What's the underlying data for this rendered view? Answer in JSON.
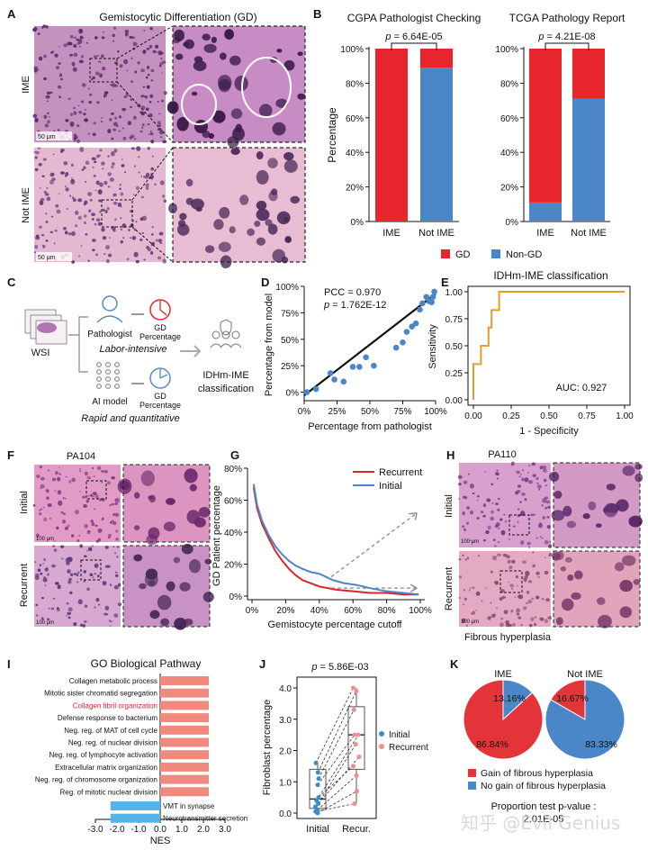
{
  "panel_letters": [
    "A",
    "B",
    "C",
    "D",
    "E",
    "F",
    "G",
    "H",
    "I",
    "J",
    "K"
  ],
  "colors": {
    "red": "#e8242c",
    "blue": "#4a86c8",
    "orange": "#e89a2c",
    "black": "#111111",
    "salmon": "#f08a7e",
    "skyblue": "#54b4e8",
    "pink": "#ef8f8f",
    "gray": "#8a8a8a",
    "he_pink": "#d9a4c8",
    "he_purple": "#b074b4"
  },
  "panelA": {
    "title": "Gemistocytic Differentiation (GD)",
    "rows": [
      "IME",
      "Not IME"
    ],
    "scalebar": "50 μm"
  },
  "panelB": {
    "legend": [
      "GD",
      "Non-GD"
    ],
    "ylabel": "Percentage",
    "yticks": [
      "0%",
      "20%",
      "40%",
      "60%",
      "80%",
      "100%"
    ]
  },
  "panelC": {
    "wsi": "WSI",
    "pathologist": "Pathologist",
    "labor": "Labor-intensive",
    "ai": "AI model",
    "rapid": "Rapid and quantitative",
    "gd_pct": "GD\nPercentage",
    "idh_line1": "IDHm-IME",
    "idh_line2": "classification"
  },
  "panelF": {
    "title": "PA104",
    "rows": [
      "Initial",
      "Recurrent"
    ],
    "scalebar": "100 μm"
  },
  "panelH": {
    "title": "PA110",
    "rows": [
      "Initial",
      "Recurrent"
    ],
    "caption": "Fibrous hyperplasia",
    "scalebar": "100 μm"
  },
  "watermark": "知乎 @Evil Genius",
  "chart_data": [
    {
      "id": "B1",
      "type": "bar",
      "stacked": true,
      "title": "CGPA Pathologist Checking",
      "annotation": "p = 6.64E-05",
      "categories": [
        "IME",
        "Not IME"
      ],
      "series": [
        {
          "name": "Non-GD",
          "values": [
            0,
            89
          ]
        },
        {
          "name": "GD",
          "values": [
            100,
            11
          ]
        }
      ],
      "ylabel": "Percentage",
      "ylim": [
        0,
        100
      ]
    },
    {
      "id": "B2",
      "type": "bar",
      "stacked": true,
      "title": "TCGA Pathology Report",
      "annotation": "p = 4.21E-08",
      "categories": [
        "IME",
        "Not IME"
      ],
      "series": [
        {
          "name": "Non-GD",
          "values": [
            11,
            71
          ]
        },
        {
          "name": "GD",
          "values": [
            89,
            29
          ]
        }
      ],
      "ylim": [
        0,
        100
      ]
    },
    {
      "id": "D",
      "type": "scatter",
      "xlabel": "Percentage from pathologist",
      "ylabel": "Percentage from model",
      "annotations": [
        "PCC = 0.970",
        "p = 1.762E-12"
      ],
      "xticks": [
        "0%",
        "25%",
        "50%",
        "75%",
        "100%"
      ],
      "yticks": [
        "0%",
        "25%",
        "50%",
        "75%",
        "100%"
      ],
      "xlim": [
        0,
        100
      ],
      "ylim": [
        -8,
        100
      ],
      "points": [
        [
          2,
          0
        ],
        [
          9,
          3
        ],
        [
          20,
          18
        ],
        [
          23,
          12
        ],
        [
          30,
          10
        ],
        [
          37,
          24
        ],
        [
          42,
          24
        ],
        [
          47,
          33
        ],
        [
          53,
          25
        ],
        [
          70,
          42
        ],
        [
          75,
          47
        ],
        [
          78,
          57
        ],
        [
          85,
          65
        ],
        [
          90,
          84
        ],
        [
          93,
          90
        ],
        [
          95,
          86
        ],
        [
          97,
          85
        ],
        [
          98,
          90
        ],
        [
          99,
          95
        ],
        [
          88,
          78
        ],
        [
          82,
          62
        ]
      ],
      "fit": [
        [
          0,
          -3
        ],
        [
          100,
          93
        ]
      ]
    },
    {
      "id": "E",
      "type": "line",
      "title": "IDHm-IME classification",
      "xlabel": "1 - Specificity",
      "ylabel": "Sensitivity",
      "annotation": "AUC: 0.927",
      "xticks": [
        "0.00",
        "0.25",
        "0.50",
        "0.75",
        "1.00"
      ],
      "yticks": [
        "0.00",
        "0.25",
        "0.50",
        "0.75",
        "1.00"
      ],
      "xlim": [
        0,
        1
      ],
      "ylim": [
        0,
        1
      ],
      "series": [
        {
          "values": [
            [
              0,
              0
            ],
            [
              0,
              0.33
            ],
            [
              0.05,
              0.33
            ],
            [
              0.05,
              0.5
            ],
            [
              0.1,
              0.5
            ],
            [
              0.1,
              0.67
            ],
            [
              0.12,
              0.67
            ],
            [
              0.12,
              0.83
            ],
            [
              0.17,
              0.83
            ],
            [
              0.17,
              1
            ],
            [
              1,
              1
            ]
          ]
        }
      ]
    },
    {
      "id": "G",
      "type": "line",
      "xlabel": "Gemistocyte percentage cutoff",
      "ylabel": "GD Patient percentage",
      "xticks": [
        "0%",
        "20%",
        "40%",
        "60%",
        "80%",
        "100%"
      ],
      "yticks": [
        "0%",
        "20%",
        "40%",
        "60%",
        "80%"
      ],
      "xlim": [
        0,
        100
      ],
      "ylim": [
        0,
        80
      ],
      "series": [
        {
          "name": "Recurrent",
          "values": [
            [
              1,
              68
            ],
            [
              3,
              55
            ],
            [
              6,
              45
            ],
            [
              10,
              36
            ],
            [
              14,
              28
            ],
            [
              18,
              22
            ],
            [
              22,
              17
            ],
            [
              26,
              13
            ],
            [
              30,
              10
            ],
            [
              35,
              8
            ],
            [
              40,
              6
            ],
            [
              45,
              5
            ],
            [
              50,
              4
            ],
            [
              60,
              3
            ],
            [
              70,
              2
            ],
            [
              80,
              2
            ],
            [
              90,
              1
            ],
            [
              99,
              1
            ]
          ]
        },
        {
          "name": "Initial",
          "values": [
            [
              1,
              70
            ],
            [
              3,
              57
            ],
            [
              6,
              47
            ],
            [
              10,
              38
            ],
            [
              14,
              31
            ],
            [
              18,
              26
            ],
            [
              22,
              22
            ],
            [
              26,
              19
            ],
            [
              30,
              17
            ],
            [
              35,
              15
            ],
            [
              40,
              14
            ],
            [
              44,
              12
            ],
            [
              48,
              10
            ],
            [
              55,
              8
            ],
            [
              62,
              7
            ],
            [
              70,
              5
            ],
            [
              80,
              3
            ],
            [
              90,
              2
            ],
            [
              99,
              1
            ]
          ]
        }
      ]
    },
    {
      "id": "I",
      "type": "bar",
      "orientation": "horizontal",
      "title": "GO Biological Pathway",
      "xlabel": "NES",
      "xticks": [
        "-3.0",
        "-2.0",
        "-1.0",
        "0.0",
        "1.0",
        "2.0",
        "3.0"
      ],
      "xlim": [
        -3,
        3
      ],
      "categories": [
        "Collagen metabolic process",
        "Mitotic sister chromatid segregation",
        "Collagen fibril organization",
        "Defense response to bacterium",
        "Neg. reg. of MAT of cell cycle",
        "Neg. reg. of nuclear division",
        "Neg. reg. of lymphocyte activation",
        "Extracellular matrix organization",
        "Neg. reg. of chromosome organization",
        "Reg. of mitotic nuclear division",
        "VMT in synapse",
        "Neurotransmitter secretion"
      ],
      "values": [
        2.25,
        2.25,
        2.25,
        2.25,
        2.25,
        2.25,
        2.25,
        2.25,
        2.25,
        2.25,
        -2.3,
        -2.3
      ],
      "highlight": "Collagen fibril organization"
    },
    {
      "id": "J",
      "type": "box",
      "annotation": "p = 5.86E-03",
      "ylabel": "Fibroblast percentage",
      "categories": [
        "Initial",
        "Recur."
      ],
      "yticks": [
        "0.0",
        "1.0",
        "2.0",
        "3.0",
        "4.0"
      ],
      "ylim": [
        0,
        4
      ],
      "legend": [
        "Initial",
        "Recurrent"
      ],
      "boxes": [
        {
          "name": "Initial",
          "q1": 0.15,
          "median": 0.45,
          "q3": 1.4,
          "min": 0.0,
          "max": 1.6
        },
        {
          "name": "Recurrent",
          "q1": 1.4,
          "median": 2.5,
          "q3": 3.4,
          "min": 0.3,
          "max": 4.0
        }
      ],
      "initial": [
        0.0,
        0.05,
        0.1,
        0.2,
        0.3,
        0.4,
        0.5,
        0.9,
        1.1,
        1.3,
        1.6
      ],
      "recurrent": [
        0.7,
        0.3,
        1.2,
        1.8,
        2.2,
        2.5,
        1.5,
        2.5,
        3.3,
        3.9,
        4.0
      ]
    },
    {
      "id": "K",
      "type": "pie",
      "groups": [
        {
          "title": "IME",
          "slices": [
            {
              "name": "Gain of fibrous hyperplasia",
              "value": 86.84,
              "label": "86.84%"
            },
            {
              "name": "No gain of fibrous hyperplasia",
              "value": 13.16,
              "label": "13.16%"
            }
          ]
        },
        {
          "title": "Not IME",
          "slices": [
            {
              "name": "Gain of fibrous hyperplasia",
              "value": 16.67,
              "label": "16.67%"
            },
            {
              "name": "No gain of fibrous hyperplasia",
              "value": 83.33,
              "label": "83.33%"
            }
          ]
        }
      ],
      "legend": [
        "Gain of fibrous hyperplasia",
        "No gain of fibrous hyperplasia"
      ],
      "footnote": [
        "Proportion test p-value :",
        "2.01E-05"
      ]
    }
  ]
}
